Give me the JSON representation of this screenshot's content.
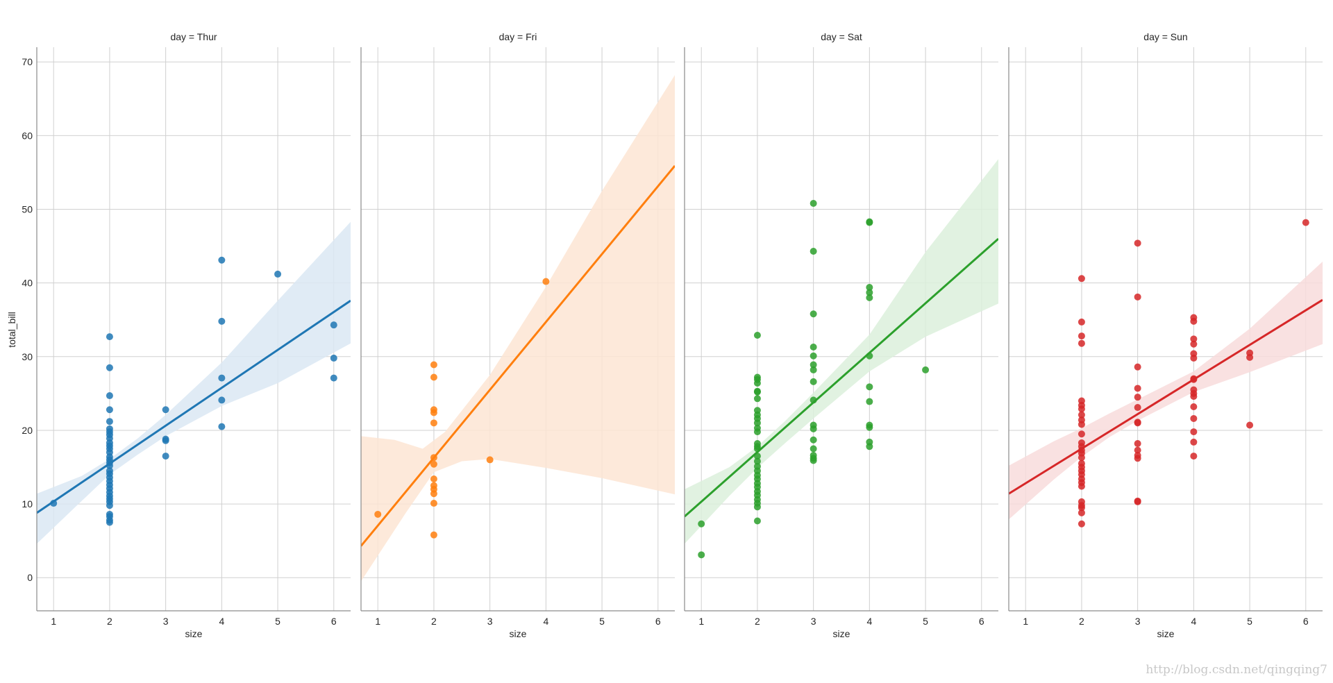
{
  "chart_data": {
    "type": "scatter",
    "ylabel": "total_bill",
    "xlabel": "size",
    "xlim": [
      0.7,
      6.3
    ],
    "ylim": [
      -4.5,
      72
    ],
    "x_ticks": [
      1,
      2,
      3,
      4,
      5,
      6
    ],
    "y_ticks": [
      0,
      10,
      20,
      30,
      40,
      50,
      60,
      70
    ],
    "grid": true,
    "watermark": "http://blog.csdn.net/qingqing7",
    "panels": [
      {
        "title": "day = Thur",
        "color": "#1f77b4",
        "band_color": "#dbe7f3",
        "points": [
          [
            1,
            10.1
          ],
          [
            2,
            32.7
          ],
          [
            2,
            28.5
          ],
          [
            2,
            24.7
          ],
          [
            2,
            22.8
          ],
          [
            2,
            21.2
          ],
          [
            2,
            20.2
          ],
          [
            2,
            19.8
          ],
          [
            2,
            19.4
          ],
          [
            2,
            18.9
          ],
          [
            2,
            18.3
          ],
          [
            2,
            17.9
          ],
          [
            2,
            17.5
          ],
          [
            2,
            17.0
          ],
          [
            2,
            16.4
          ],
          [
            2,
            16.0
          ],
          [
            2,
            15.6
          ],
          [
            2,
            15.2
          ],
          [
            2,
            14.5
          ],
          [
            2,
            14.1
          ],
          [
            2,
            13.6
          ],
          [
            2,
            13.1
          ],
          [
            2,
            12.6
          ],
          [
            2,
            12.1
          ],
          [
            2,
            11.6
          ],
          [
            2,
            11.1
          ],
          [
            2,
            10.7
          ],
          [
            2,
            10.3
          ],
          [
            2,
            9.8
          ],
          [
            2,
            8.6
          ],
          [
            2,
            8.3
          ],
          [
            2,
            7.8
          ],
          [
            2,
            7.5
          ],
          [
            3,
            22.8
          ],
          [
            3,
            18.8
          ],
          [
            3,
            18.6
          ],
          [
            3,
            16.5
          ],
          [
            4,
            43.1
          ],
          [
            4,
            34.8
          ],
          [
            4,
            27.1
          ],
          [
            4,
            24.1
          ],
          [
            4,
            20.5
          ],
          [
            5,
            41.2
          ],
          [
            6,
            34.3
          ],
          [
            6,
            29.8
          ],
          [
            6,
            27.1
          ]
        ],
        "fit_line": [
          [
            0.7,
            8.8
          ],
          [
            6.3,
            37.6
          ]
        ],
        "ci_upper": [
          [
            0.7,
            11.4
          ],
          [
            1.5,
            13.8
          ],
          [
            2.0,
            16.1
          ],
          [
            2.5,
            18.9
          ],
          [
            3.0,
            22.1
          ],
          [
            4.0,
            29.2
          ],
          [
            5.0,
            37.6
          ],
          [
            6.3,
            48.3
          ]
        ],
        "ci_lower": [
          [
            0.7,
            4.6
          ],
          [
            1.5,
            10.4
          ],
          [
            2.0,
            14.0
          ],
          [
            2.5,
            16.7
          ],
          [
            3.0,
            19.2
          ],
          [
            4.0,
            23.3
          ],
          [
            5.0,
            26.4
          ],
          [
            6.3,
            31.8
          ]
        ]
      },
      {
        "title": "day = Fri",
        "color": "#ff7f0e",
        "band_color": "#fde5d3",
        "points": [
          [
            1,
            8.6
          ],
          [
            2,
            28.9
          ],
          [
            2,
            27.2
          ],
          [
            2,
            22.8
          ],
          [
            2,
            22.4
          ],
          [
            2,
            21.0
          ],
          [
            2,
            16.3
          ],
          [
            2,
            15.4
          ],
          [
            2,
            13.4
          ],
          [
            2,
            12.5
          ],
          [
            2,
            12.0
          ],
          [
            2,
            11.4
          ],
          [
            2,
            10.1
          ],
          [
            2,
            5.8
          ],
          [
            3,
            16.0
          ],
          [
            4,
            40.2
          ]
        ],
        "fit_line": [
          [
            0.7,
            4.3
          ],
          [
            6.3,
            55.9
          ]
        ],
        "ci_upper": [
          [
            0.7,
            19.2
          ],
          [
            1.3,
            18.7
          ],
          [
            1.8,
            17.5
          ],
          [
            2.2,
            19.8
          ],
          [
            3.0,
            27.5
          ],
          [
            4.0,
            39.5
          ],
          [
            5.0,
            52.5
          ],
          [
            6.3,
            68.2
          ]
        ],
        "ci_lower": [
          [
            0.7,
            -0.5
          ],
          [
            1.5,
            8.8
          ],
          [
            2.0,
            14.3
          ],
          [
            2.5,
            15.8
          ],
          [
            3.0,
            16.1
          ],
          [
            4.0,
            14.9
          ],
          [
            5.0,
            13.5
          ],
          [
            6.3,
            11.3
          ]
        ]
      },
      {
        "title": "day = Sat",
        "color": "#2ca02c",
        "band_color": "#dcf0dc",
        "points": [
          [
            1,
            7.3
          ],
          [
            1,
            3.1
          ],
          [
            2,
            32.9
          ],
          [
            2,
            27.2
          ],
          [
            2,
            26.9
          ],
          [
            2,
            26.4
          ],
          [
            2,
            25.3
          ],
          [
            2,
            25.2
          ],
          [
            2,
            24.3
          ],
          [
            2,
            22.7
          ],
          [
            2,
            22.1
          ],
          [
            2,
            21.6
          ],
          [
            2,
            21.0
          ],
          [
            2,
            20.3
          ],
          [
            2,
            19.8
          ],
          [
            2,
            18.2
          ],
          [
            2,
            17.8
          ],
          [
            2,
            17.5
          ],
          [
            2,
            16.5
          ],
          [
            2,
            15.8
          ],
          [
            2,
            15.1
          ],
          [
            2,
            14.5
          ],
          [
            2,
            13.9
          ],
          [
            2,
            13.4
          ],
          [
            2,
            12.8
          ],
          [
            2,
            12.3
          ],
          [
            2,
            11.7
          ],
          [
            2,
            11.2
          ],
          [
            2,
            10.6
          ],
          [
            2,
            10.1
          ],
          [
            2,
            9.6
          ],
          [
            2,
            7.7
          ],
          [
            3,
            50.8
          ],
          [
            3,
            44.3
          ],
          [
            3,
            35.8
          ],
          [
            3,
            31.3
          ],
          [
            3,
            30.1
          ],
          [
            3,
            28.9
          ],
          [
            3,
            28.2
          ],
          [
            3,
            26.6
          ],
          [
            3,
            24.1
          ],
          [
            3,
            20.7
          ],
          [
            3,
            20.2
          ],
          [
            3,
            18.7
          ],
          [
            3,
            17.5
          ],
          [
            3,
            16.6
          ],
          [
            3,
            16.2
          ],
          [
            3,
            15.9
          ],
          [
            4,
            48.3
          ],
          [
            4,
            48.2
          ],
          [
            4,
            39.4
          ],
          [
            4,
            38.7
          ],
          [
            4,
            38.0
          ],
          [
            4,
            30.1
          ],
          [
            4,
            25.9
          ],
          [
            4,
            23.9
          ],
          [
            4,
            20.7
          ],
          [
            4,
            20.4
          ],
          [
            4,
            18.4
          ],
          [
            4,
            17.8
          ],
          [
            5,
            28.2
          ]
        ],
        "fit_line": [
          [
            0.7,
            8.3
          ],
          [
            6.3,
            46.0
          ]
        ],
        "ci_upper": [
          [
            0.7,
            12.0
          ],
          [
            1.5,
            15.0
          ],
          [
            2.0,
            17.8
          ],
          [
            2.5,
            21.3
          ],
          [
            3.0,
            25.1
          ],
          [
            4.0,
            33.0
          ],
          [
            5.0,
            44.2
          ],
          [
            6.3,
            56.8
          ]
        ],
        "ci_lower": [
          [
            0.7,
            4.6
          ],
          [
            1.5,
            11.1
          ],
          [
            2.0,
            14.9
          ],
          [
            2.5,
            18.3
          ],
          [
            3.0,
            21.6
          ],
          [
            4.0,
            28.0
          ],
          [
            5.0,
            32.7
          ],
          [
            6.3,
            37.2
          ]
        ]
      },
      {
        "title": "day = Sun",
        "color": "#d62728",
        "band_color": "#f8dcdc",
        "points": [
          [
            2,
            40.6
          ],
          [
            2,
            34.7
          ],
          [
            2,
            32.8
          ],
          [
            2,
            31.8
          ],
          [
            2,
            24.0
          ],
          [
            2,
            23.4
          ],
          [
            2,
            22.9
          ],
          [
            2,
            22.1
          ],
          [
            2,
            21.4
          ],
          [
            2,
            20.8
          ],
          [
            2,
            19.5
          ],
          [
            2,
            18.3
          ],
          [
            2,
            17.8
          ],
          [
            2,
            17.3
          ],
          [
            2,
            16.9
          ],
          [
            2,
            16.3
          ],
          [
            2,
            15.5
          ],
          [
            2,
            15.0
          ],
          [
            2,
            14.5
          ],
          [
            2,
            14.0
          ],
          [
            2,
            13.4
          ],
          [
            2,
            12.9
          ],
          [
            2,
            12.4
          ],
          [
            2,
            10.3
          ],
          [
            2,
            9.8
          ],
          [
            2,
            9.5
          ],
          [
            2,
            8.8
          ],
          [
            2,
            7.3
          ],
          [
            3,
            45.4
          ],
          [
            3,
            38.1
          ],
          [
            3,
            28.6
          ],
          [
            3,
            25.7
          ],
          [
            3,
            24.5
          ],
          [
            3,
            23.1
          ],
          [
            3,
            21.1
          ],
          [
            3,
            21.0
          ],
          [
            3,
            18.2
          ],
          [
            3,
            17.3
          ],
          [
            3,
            16.6
          ],
          [
            3,
            16.2
          ],
          [
            3,
            10.4
          ],
          [
            3,
            10.3
          ],
          [
            4,
            35.3
          ],
          [
            4,
            34.8
          ],
          [
            4,
            32.4
          ],
          [
            4,
            31.7
          ],
          [
            4,
            30.4
          ],
          [
            4,
            29.8
          ],
          [
            4,
            27.0
          ],
          [
            4,
            26.9
          ],
          [
            4,
            25.5
          ],
          [
            4,
            25.0
          ],
          [
            4,
            24.6
          ],
          [
            4,
            23.2
          ],
          [
            4,
            21.6
          ],
          [
            4,
            19.8
          ],
          [
            4,
            18.4
          ],
          [
            4,
            16.5
          ],
          [
            5,
            30.5
          ],
          [
            5,
            29.9
          ],
          [
            5,
            20.7
          ],
          [
            6,
            48.2
          ]
        ],
        "fit_line": [
          [
            0.7,
            11.4
          ],
          [
            6.3,
            37.7
          ]
        ],
        "ci_upper": [
          [
            0.7,
            15.2
          ],
          [
            1.5,
            18.5
          ],
          [
            2.0,
            20.3
          ],
          [
            2.5,
            22.3
          ],
          [
            3.0,
            24.2
          ],
          [
            4.0,
            28.0
          ],
          [
            5.0,
            33.8
          ],
          [
            6.3,
            42.9
          ]
        ],
        "ci_lower": [
          [
            0.7,
            7.9
          ],
          [
            1.5,
            13.3
          ],
          [
            2.0,
            16.4
          ],
          [
            2.5,
            19.1
          ],
          [
            3.0,
            21.3
          ],
          [
            4.0,
            25.2
          ],
          [
            5.0,
            27.9
          ],
          [
            6.3,
            31.7
          ]
        ]
      }
    ]
  }
}
